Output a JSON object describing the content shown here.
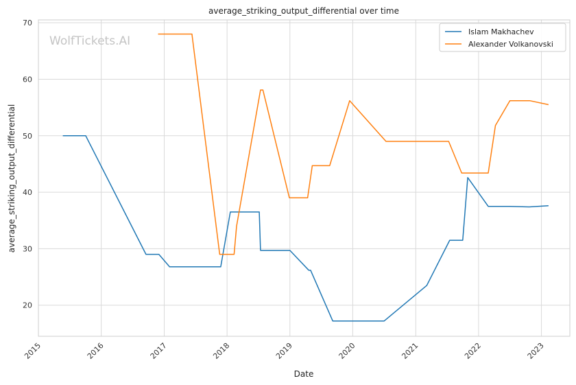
{
  "watermark": "WolfTickets.AI",
  "chart_data": {
    "type": "line",
    "title": "average_striking_output_differential over time",
    "xlabel": "Date",
    "ylabel": "average_striking_output_differential",
    "xlim": [
      "2015-01-01",
      "2023-06-15"
    ],
    "ylim": [
      14.5,
      70.5
    ],
    "x_ticks": [
      "2015",
      "2016",
      "2017",
      "2018",
      "2019",
      "2020",
      "2021",
      "2022",
      "2023"
    ],
    "y_ticks": [
      20,
      30,
      40,
      50,
      60,
      70
    ],
    "grid": true,
    "legend_position": "top-right",
    "series": [
      {
        "name": "Islam Makhachev",
        "color": "#1f77b4",
        "points": [
          [
            "2015-05-23",
            50.0
          ],
          [
            "2015-10-03",
            50.0
          ],
          [
            "2016-09-17",
            29.0
          ],
          [
            "2016-12-01",
            29.0
          ],
          [
            "2017-02-01",
            26.8
          ],
          [
            "2017-11-25",
            26.8
          ],
          [
            "2018-01-20",
            36.5
          ],
          [
            "2018-07-07",
            36.5
          ],
          [
            "2018-07-14",
            29.7
          ],
          [
            "2019-01-01",
            29.7
          ],
          [
            "2019-04-20",
            26.2
          ],
          [
            "2019-05-01",
            26.2
          ],
          [
            "2019-09-07",
            17.2
          ],
          [
            "2020-07-01",
            17.2
          ],
          [
            "2021-03-06",
            23.5
          ],
          [
            "2021-07-17",
            31.5
          ],
          [
            "2021-10-01",
            31.5
          ],
          [
            "2021-10-30",
            42.6
          ],
          [
            "2022-02-26",
            37.5
          ],
          [
            "2022-07-01",
            37.5
          ],
          [
            "2022-10-22",
            37.4
          ],
          [
            "2023-02-11",
            37.6
          ]
        ]
      },
      {
        "name": "Alexander Volkanovski",
        "color": "#ff7f0e",
        "points": [
          [
            "2016-11-26",
            68.0
          ],
          [
            "2017-06-11",
            68.0
          ],
          [
            "2017-11-19",
            29.0
          ],
          [
            "2018-02-11",
            29.0
          ],
          [
            "2018-02-25",
            34.0
          ],
          [
            "2018-07-14",
            58.1
          ],
          [
            "2018-07-28",
            58.1
          ],
          [
            "2018-12-29",
            39.0
          ],
          [
            "2019-04-14",
            39.0
          ],
          [
            "2019-05-11",
            44.7
          ],
          [
            "2019-08-20",
            44.7
          ],
          [
            "2019-12-14",
            56.2
          ],
          [
            "2020-07-12",
            49.0
          ],
          [
            "2021-07-11",
            49.0
          ],
          [
            "2021-09-25",
            43.4
          ],
          [
            "2022-02-26",
            43.4
          ],
          [
            "2022-04-09",
            51.8
          ],
          [
            "2022-07-02",
            56.2
          ],
          [
            "2022-10-25",
            56.2
          ],
          [
            "2023-02-11",
            55.5
          ]
        ]
      }
    ]
  }
}
